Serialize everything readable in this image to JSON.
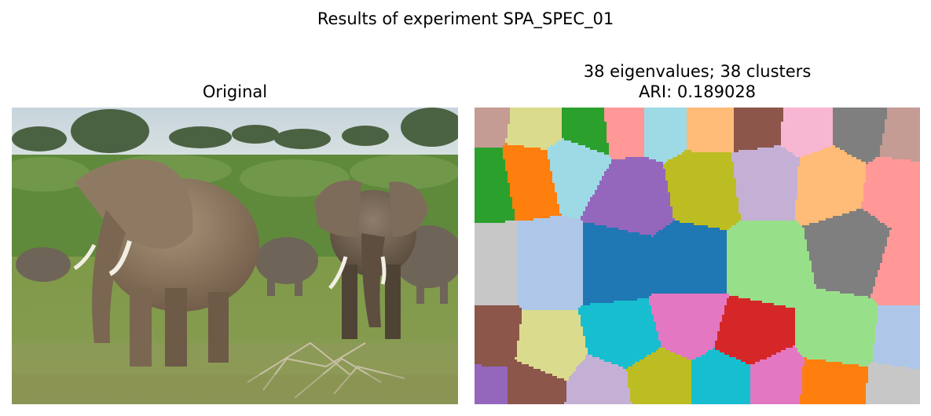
{
  "figure": {
    "suptitle": "Results of experiment SPA_SPEC_01"
  },
  "left_panel": {
    "title": "Original",
    "content": "photograph of elephants in grassland"
  },
  "right_panel": {
    "title_line1": "38 eigenvalues; 38 clusters",
    "title_line2": "ARI: 0.189028",
    "palette": [
      "#1f77b4",
      "#ff7f0e",
      "#2ca02c",
      "#d62728",
      "#9467bd",
      "#8c564b",
      "#e377c2",
      "#7f7f7f",
      "#bcbd22",
      "#17becf",
      "#aec7e8",
      "#ffbb78",
      "#98df8a",
      "#ff9896",
      "#c5b0d5",
      "#c49c94",
      "#f7b6d2",
      "#c7c7c7",
      "#dbdb8d",
      "#9edae5"
    ]
  }
}
